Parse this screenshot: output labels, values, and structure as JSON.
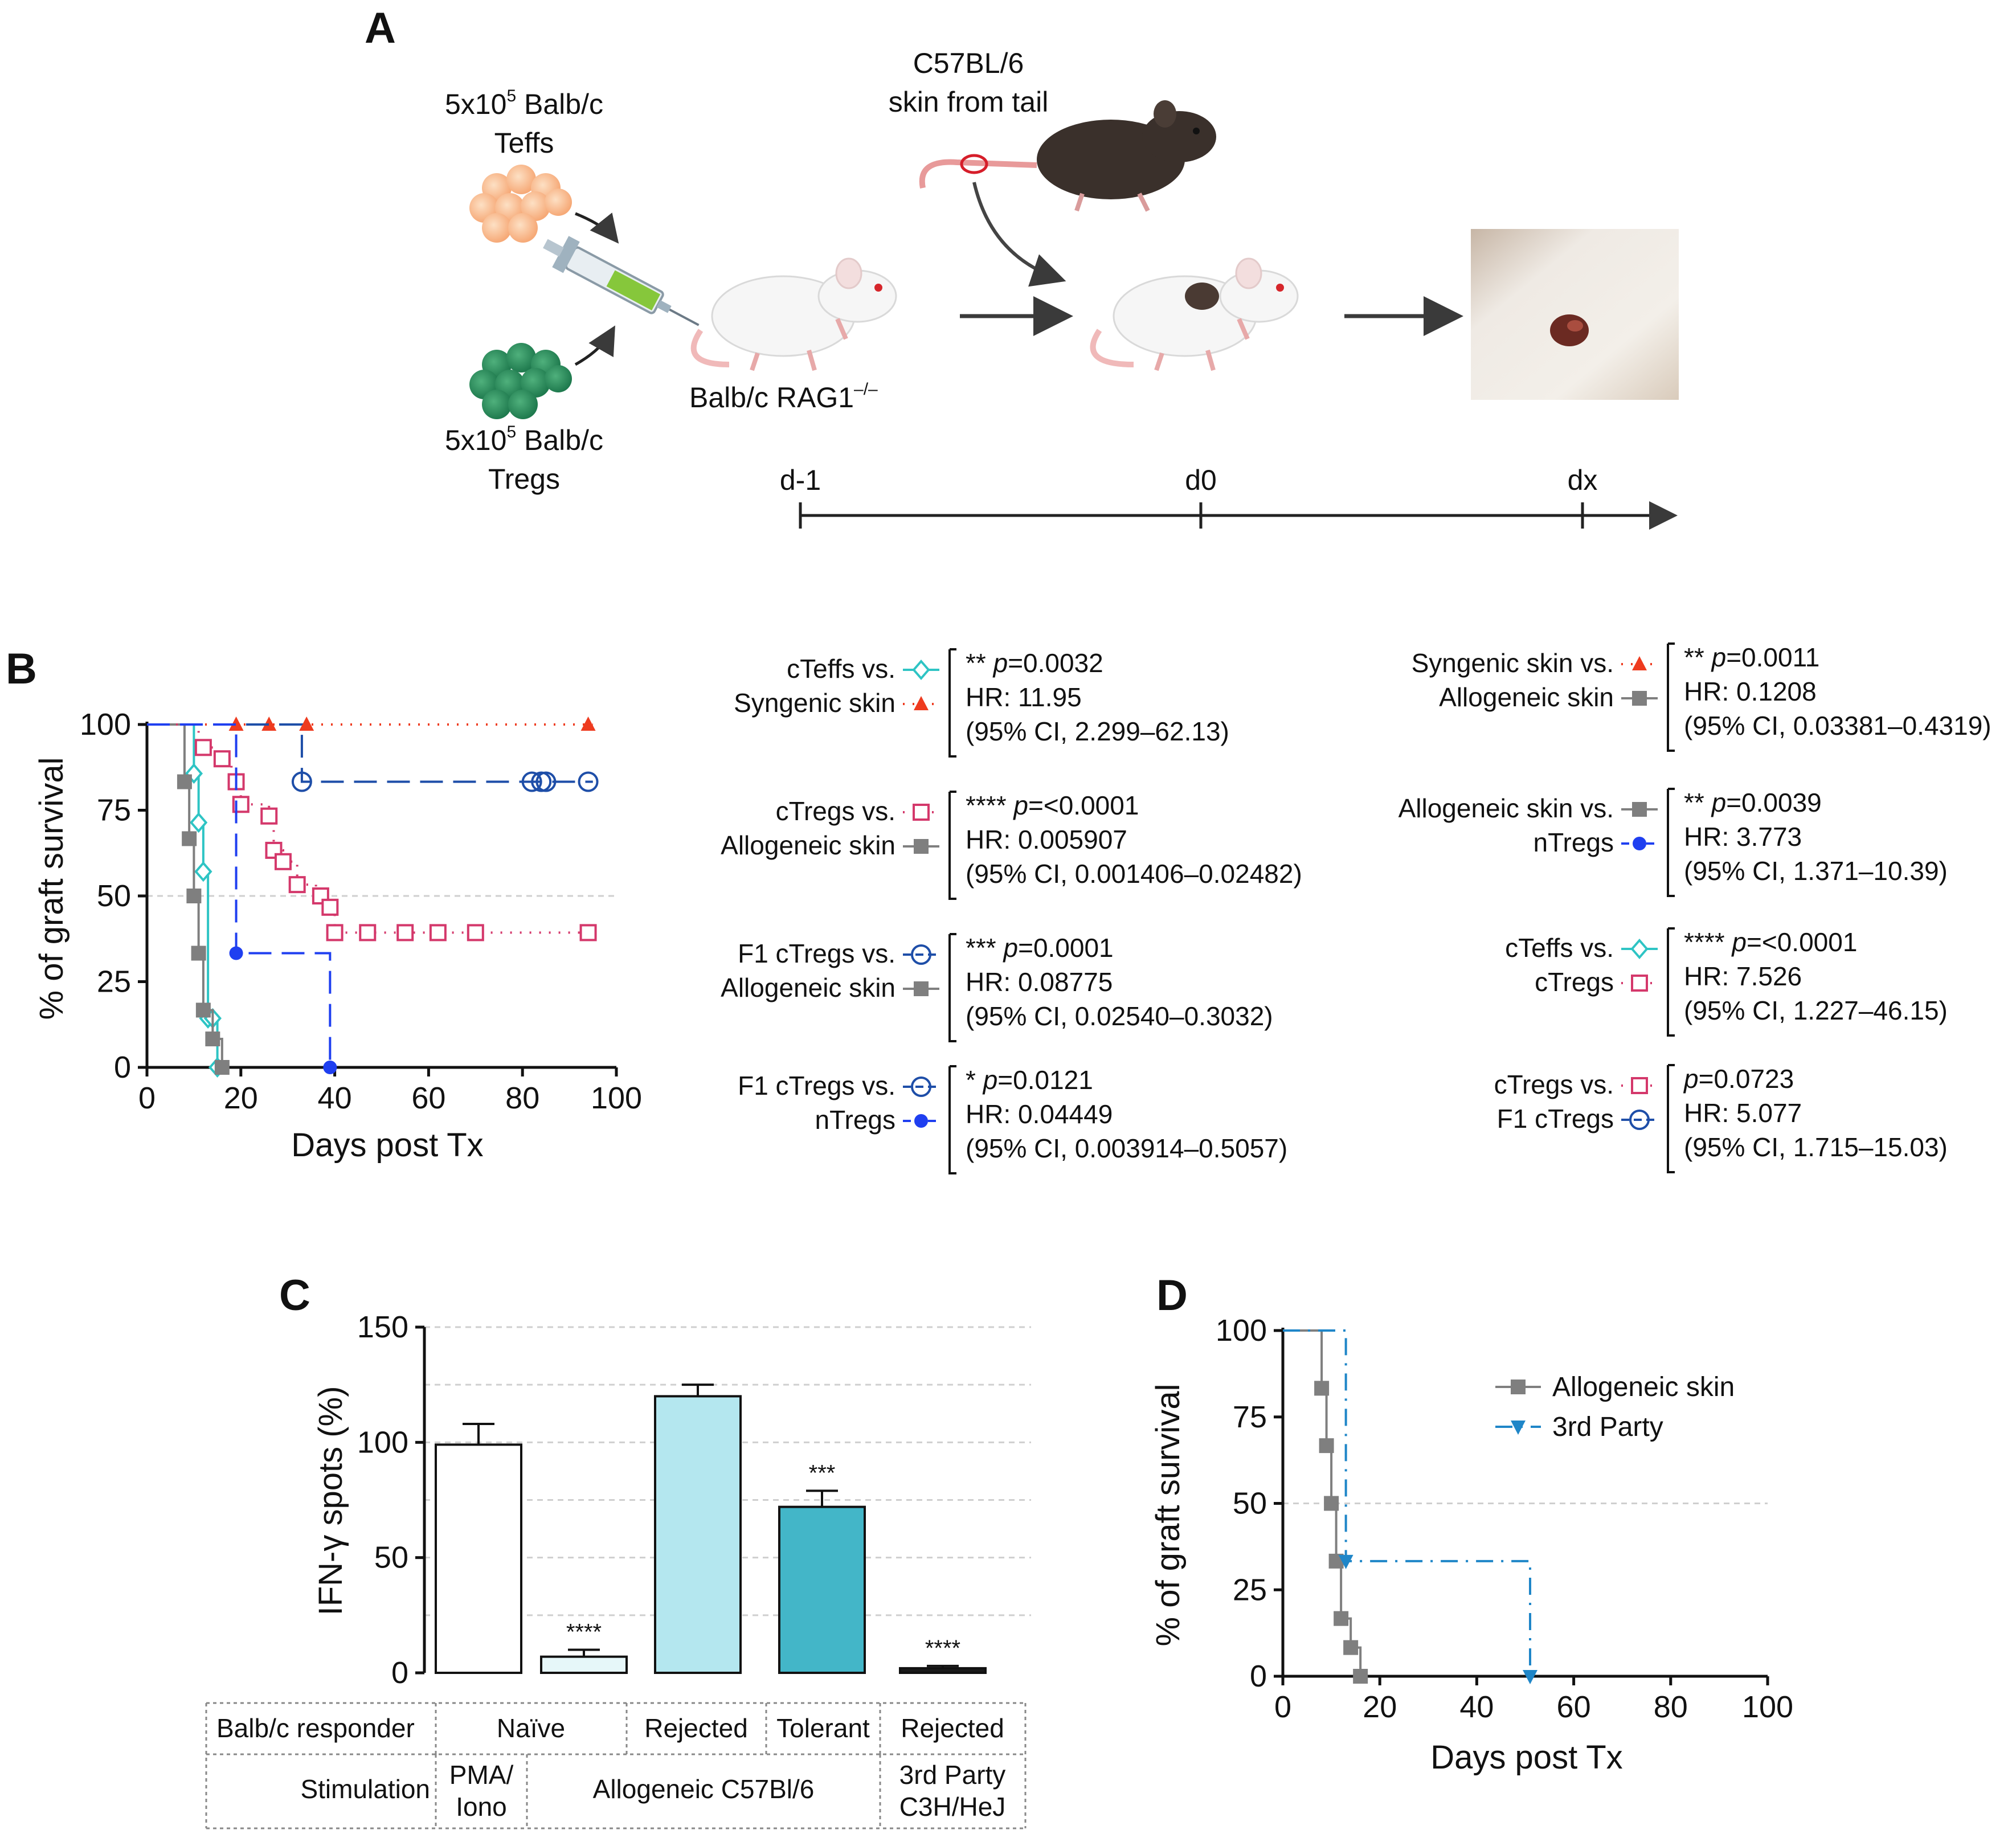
{
  "panel_a": {
    "letter": "A",
    "teffs_label_line1": "5x10",
    "teffs_exp": "5",
    "teffs_label_line1b": " Balb/c",
    "teffs_label_line2": "Teffs",
    "tregs_label_line1": "5x10",
    "tregs_exp": "5",
    "tregs_label_line1b": " Balb/c",
    "tregs_label_line2": "Tregs",
    "donor_line1": "C57BL/6",
    "donor_line2": "skin from tail",
    "recipient_label": "Balb/c RAG1",
    "recipient_sup": "–/–",
    "timeline": [
      "d-1",
      "d0",
      "dx"
    ]
  },
  "panel_b": {
    "letter": "B",
    "ylabel": "% of  graft survival",
    "xlabel": "Days post Tx",
    "stats_left": [
      {
        "a": "cTeffs vs.",
        "b": "Syngenic skin",
        "p_prefix": "** ",
        "p": "p",
        "p_val": "=0.0032",
        "hr": "HR: 11.95",
        "ci": "(95% CI, 2.299–62.13)"
      },
      {
        "a": "cTregs vs.",
        "b": "Allogeneic skin",
        "p_prefix": "**** ",
        "p": "p",
        "p_val": "=<0.0001",
        "hr": "HR: 0.005907",
        "ci": "(95% CI, 0.001406–0.02482)"
      },
      {
        "a": "F1 cTregs vs.",
        "b": "Allogeneic skin",
        "p_prefix": "*** ",
        "p": "p",
        "p_val": "=0.0001",
        "hr": "HR: 0.08775",
        "ci": "(95% CI, 0.02540–0.3032)"
      },
      {
        "a": "F1 cTregs vs.",
        "b": "nTregs",
        "p_prefix": "* ",
        "p": "p",
        "p_val": "=0.0121",
        "hr": "HR: 0.04449",
        "ci": "(95% CI, 0.003914–0.5057)"
      }
    ],
    "stats_right": [
      {
        "a": "Syngenic skin vs.",
        "b": "Allogeneic skin",
        "p_prefix": "** ",
        "p": "p",
        "p_val": "=0.0011",
        "hr": "HR: 0.1208",
        "ci": "(95% CI, 0.03381–0.4319)"
      },
      {
        "a": "Allogeneic skin vs.",
        "b": "nTregs",
        "p_prefix": "** ",
        "p": "p",
        "p_val": "=0.0039",
        "hr": "HR: 3.773",
        "ci": "(95% CI, 1.371–10.39)"
      },
      {
        "a": "cTeffs vs.",
        "b": "cTregs",
        "p_prefix": "**** ",
        "p": "p",
        "p_val": "=<0.0001",
        "hr": "HR: 7.526",
        "ci": "(95% CI, 1.227–46.15)"
      },
      {
        "a": "cTregs vs.",
        "b": "F1 cTregs",
        "p_prefix": "",
        "p": "p",
        "p_val": "=0.0723",
        "hr": "HR: 5.077",
        "ci": "(95% CI, 1.715–15.03)"
      }
    ]
  },
  "panel_c": {
    "letter": "C",
    "ylabel": "IFN-γ spots (%)",
    "table_rows": [
      {
        "head": "Balb/c responder",
        "cells": [
          "Naïve",
          "Rejected",
          "Tolerant",
          "Rejected"
        ]
      },
      {
        "head": "Stimulation",
        "cells": [
          "PMA/\nIono",
          "Allogeneic C57Bl/6",
          "3rd Party\nC3H/HeJ"
        ]
      }
    ]
  },
  "panel_d": {
    "letter": "D",
    "ylabel": "% of  graft survival",
    "xlabel": "Days post Tx",
    "legend": [
      "Allogeneic skin",
      "3rd Party"
    ]
  },
  "colors": {
    "cteffs": "#2ec4c4",
    "syngenic": "#ee3b1f",
    "allogeneic": "#7f7f7f",
    "ctregs": "#d4386b",
    "f1ctregs": "#1e4ea8",
    "ntregs": "#1f3ff0",
    "third_party": "#1f86c8",
    "bar_naive": "#ffffff",
    "bar_pma": "#e6f7f9",
    "bar_rejected": "#b4e7ef",
    "bar_tolerant": "#43b6c8",
    "bar_third": "#1a1a1a"
  },
  "chart_data": [
    {
      "type": "line",
      "panel": "B",
      "subtype": "kaplan-meier",
      "xlabel": "Days post Tx",
      "ylabel": "% of  graft survival",
      "xlim": [
        0,
        100
      ],
      "ylim": [
        0,
        100
      ],
      "xticks": [
        0,
        20,
        40,
        60,
        80,
        100
      ],
      "yticks": [
        0,
        25,
        50,
        75,
        100
      ],
      "series": [
        {
          "name": "cTeffs",
          "key": "cteffs",
          "line": "solid",
          "marker": "diamond-open",
          "steps": [
            [
              0,
              100
            ],
            [
              10,
              85.7
            ],
            [
              11,
              71.4
            ],
            [
              12,
              57.1
            ],
            [
              13,
              14.3
            ],
            [
              14,
              14.3
            ],
            [
              15,
              0
            ]
          ],
          "censor": [
            [
              10,
              85.7
            ],
            [
              11,
              71.4
            ],
            [
              12,
              57.1
            ],
            [
              13,
              14.3
            ],
            [
              14,
              14.3
            ],
            [
              15,
              0
            ]
          ]
        },
        {
          "name": "Syngenic skin",
          "key": "syngenic",
          "line": "dotted",
          "marker": "triangle-filled",
          "steps": [
            [
              0,
              100
            ],
            [
              95,
              100
            ]
          ],
          "censor": [
            [
              19,
              100
            ],
            [
              26,
              100
            ],
            [
              34,
              100
            ],
            [
              94,
              100
            ]
          ]
        },
        {
          "name": "Allogeneic skin",
          "key": "allogeneic",
          "line": "solid",
          "marker": "square-filled",
          "steps": [
            [
              0,
              100
            ],
            [
              8,
              83.3
            ],
            [
              9,
              66.7
            ],
            [
              10,
              50
            ],
            [
              11,
              33.3
            ],
            [
              12,
              16.7
            ],
            [
              14,
              8.3
            ],
            [
              16,
              0
            ],
            [
              17,
              0
            ]
          ],
          "censor": [
            [
              8,
              83.3
            ],
            [
              9,
              66.7
            ],
            [
              10,
              50
            ],
            [
              11,
              33.3
            ],
            [
              12,
              16.7
            ],
            [
              14,
              8.3
            ],
            [
              16,
              0
            ]
          ]
        },
        {
          "name": "cTregs",
          "key": "ctregs",
          "line": "dotted",
          "marker": "square-open",
          "steps": [
            [
              0,
              100
            ],
            [
              11,
              93.3
            ],
            [
              15,
              90
            ],
            [
              18,
              83.3
            ],
            [
              20,
              76.7
            ],
            [
              26,
              73.3
            ],
            [
              27,
              63.3
            ],
            [
              29,
              60
            ],
            [
              32,
              53.3
            ],
            [
              36,
              50
            ],
            [
              38,
              46.7
            ],
            [
              40,
              39.3
            ],
            [
              95,
              39.3
            ]
          ],
          "censor": [
            [
              12,
              93.3
            ],
            [
              16,
              90
            ],
            [
              19,
              83.3
            ],
            [
              20,
              76.7
            ],
            [
              26,
              73.3
            ],
            [
              27,
              63.3
            ],
            [
              29,
              60
            ],
            [
              32,
              53.3
            ],
            [
              37,
              50
            ],
            [
              39,
              46.7
            ],
            [
              40,
              39.3
            ],
            [
              47,
              39.3
            ],
            [
              55,
              39.3
            ],
            [
              62,
              39.3
            ],
            [
              70,
              39.3
            ],
            [
              94,
              39.3
            ]
          ]
        },
        {
          "name": "F1 cTregs",
          "key": "f1ctregs",
          "line": "dashed",
          "marker": "circle-open",
          "steps": [
            [
              0,
              100
            ],
            [
              33,
              100
            ],
            [
              33,
              83.3
            ],
            [
              95,
              83.3
            ]
          ],
          "censor": [
            [
              33,
              83.3
            ],
            [
              82,
              83.3
            ],
            [
              84,
              83.3
            ],
            [
              85,
              83.3
            ],
            [
              94,
              83.3
            ]
          ]
        },
        {
          "name": "nTregs",
          "key": "ntregs",
          "line": "dashed",
          "marker": "circle-filled",
          "steps": [
            [
              0,
              100
            ],
            [
              19,
              100
            ],
            [
              19,
              33.3
            ],
            [
              39,
              33.3
            ],
            [
              39,
              0
            ]
          ],
          "censor": [
            [
              19,
              33.3
            ],
            [
              39,
              0
            ]
          ]
        }
      ]
    },
    {
      "type": "bar",
      "panel": "C",
      "ylabel": "IFN-γ spots (%)",
      "ylim": [
        0,
        150
      ],
      "yticks": [
        0,
        50,
        100,
        150
      ],
      "gridlines": [
        25,
        50,
        75,
        100,
        125,
        150
      ],
      "bars": [
        {
          "value": 99,
          "error": 9,
          "sig": "",
          "key": "bar_naive"
        },
        {
          "value": 7,
          "error": 3,
          "sig": "****",
          "key": "bar_pma"
        },
        {
          "value": 120,
          "error": 5,
          "sig": "",
          "key": "bar_rejected"
        },
        {
          "value": 72,
          "error": 7,
          "sig": "***",
          "key": "bar_tolerant"
        },
        {
          "value": 2,
          "error": 1,
          "sig": "****",
          "key": "bar_third"
        }
      ]
    },
    {
      "type": "line",
      "panel": "D",
      "subtype": "kaplan-meier",
      "xlabel": "Days post Tx",
      "ylabel": "% of  graft survival",
      "xlim": [
        0,
        100
      ],
      "ylim": [
        0,
        100
      ],
      "xticks": [
        0,
        20,
        40,
        60,
        80,
        100
      ],
      "yticks": [
        0,
        25,
        50,
        75,
        100
      ],
      "series": [
        {
          "name": "Allogeneic skin",
          "key": "allogeneic",
          "line": "solid",
          "marker": "square-filled",
          "steps": [
            [
              0,
              100
            ],
            [
              8,
              83.3
            ],
            [
              9,
              66.7
            ],
            [
              10,
              50
            ],
            [
              11,
              33.3
            ],
            [
              12,
              16.7
            ],
            [
              14,
              8.3
            ],
            [
              16,
              0
            ],
            [
              17,
              0
            ]
          ],
          "censor": [
            [
              8,
              83.3
            ],
            [
              9,
              66.7
            ],
            [
              10,
              50
            ],
            [
              11,
              33.3
            ],
            [
              12,
              16.7
            ],
            [
              14,
              8.3
            ],
            [
              16,
              0
            ]
          ]
        },
        {
          "name": "3rd Party",
          "key": "third_party",
          "line": "dashdot",
          "marker": "triangle-down-filled",
          "steps": [
            [
              0,
              100
            ],
            [
              13,
              100
            ],
            [
              13,
              33.3
            ],
            [
              51,
              33.3
            ],
            [
              51,
              0
            ]
          ],
          "censor": [
            [
              13,
              33.3
            ],
            [
              51,
              0
            ]
          ]
        }
      ]
    }
  ]
}
